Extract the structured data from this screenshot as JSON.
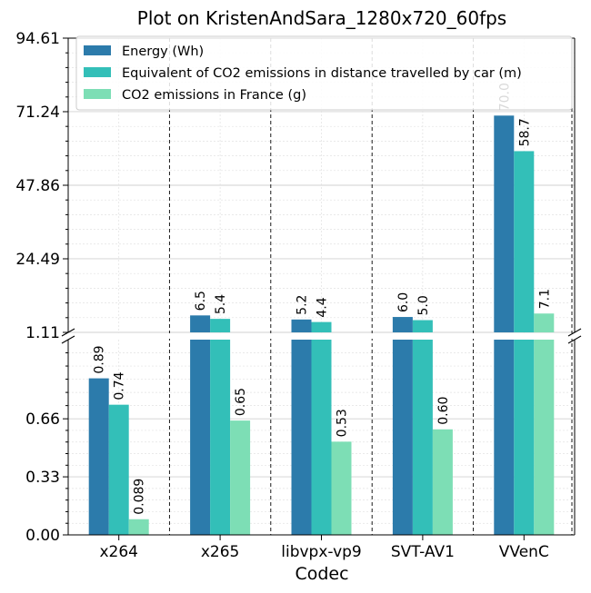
{
  "chart_data": {
    "type": "bar",
    "title": "Plot on KristenAndSara_1280x720_60fps",
    "xlabel": "Codec",
    "ylabel": "",
    "categories": [
      "x264",
      "x265",
      "libvpx-vp9",
      "SVT-AV1",
      "VVenC"
    ],
    "series": [
      {
        "name": "Energy (Wh)",
        "color": "#2c7bab",
        "values": [
          0.89,
          6.5,
          5.2,
          6.0,
          70.0
        ],
        "labels": [
          "0.89",
          "6.5",
          "5.2",
          "6.0",
          "70.0"
        ]
      },
      {
        "name": "Equivalent of CO2 emissions in distance travelled by car (m)",
        "color": "#33bfb8",
        "values": [
          0.74,
          5.4,
          4.4,
          5.0,
          58.7
        ],
        "labels": [
          "0.74",
          "5.4",
          "4.4",
          "5.0",
          "58.7"
        ]
      },
      {
        "name": "CO2 emissions in France (g)",
        "color": "#7ddeb5",
        "values": [
          0.089,
          0.65,
          0.53,
          0.6,
          7.1
        ],
        "labels": [
          "0.089",
          "0.65",
          "0.53",
          "0.60",
          "7.1"
        ]
      }
    ],
    "y_axis": "broken",
    "upper_ylim": [
      1.11,
      94.61
    ],
    "upper_ticks": [
      "1.11",
      "24.49",
      "47.86",
      "71.24",
      "94.61"
    ],
    "lower_ylim": [
      0.0,
      1.11
    ],
    "lower_ticks": [
      "0.00",
      "0.33",
      "0.66",
      "1.11"
    ],
    "legend_position": "top-right",
    "grid": true
  }
}
